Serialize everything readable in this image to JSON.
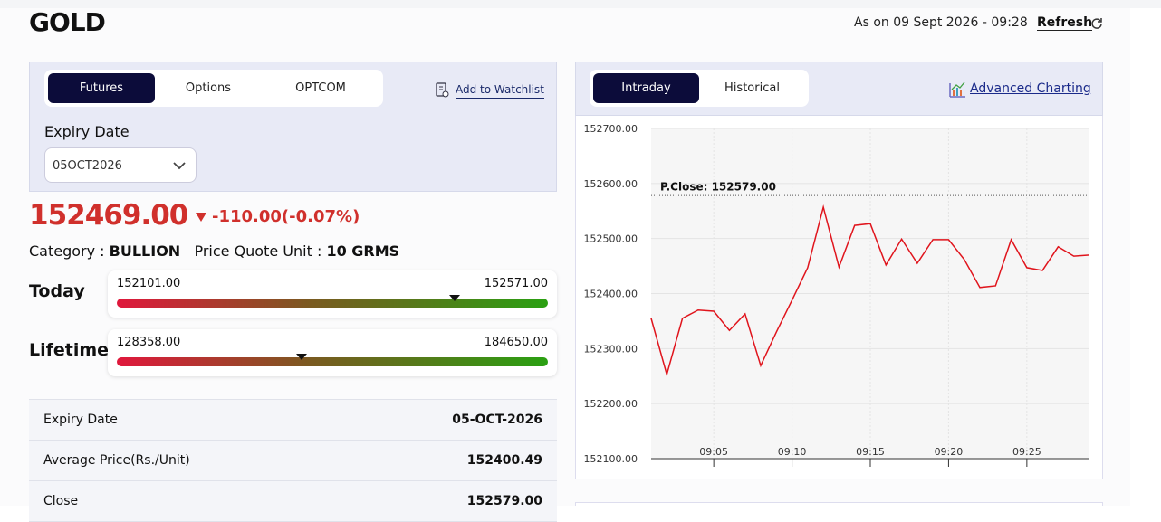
{
  "header": {
    "title": "GOLD",
    "as_on": "As on 09 Sept 2026 - 09:28",
    "refresh": "Refresh"
  },
  "left_tabs": {
    "items": [
      "Futures",
      "Options",
      "OPTCOM"
    ],
    "active": 0
  },
  "watchlist": "Add to Watchlist",
  "expiry": {
    "label": "Expiry Date",
    "selected": "05OCT2026"
  },
  "price": "152469.00",
  "change": "-110.00(-0.07%)",
  "category": {
    "label": "Category :",
    "value": "BULLION"
  },
  "quote_unit": {
    "label": "Price Quote Unit :",
    "value": "10 GRMS"
  },
  "ranges": [
    {
      "label": "Today",
      "low": "152101.00",
      "high": "152571.00"
    },
    {
      "label": "Lifetime",
      "low": "128358.00",
      "high": "184650.00"
    }
  ],
  "table": {
    "rows": [
      [
        "Expiry Date",
        "05-OCT-2026"
      ],
      [
        "Average Price(Rs./Unit)",
        "152400.49"
      ],
      [
        "Close",
        "152579.00"
      ]
    ]
  },
  "right_tabs": {
    "items": [
      "Intraday",
      "Historical"
    ],
    "active": 0
  },
  "advanced": "Advanced Charting",
  "chart_data": {
    "type": "line",
    "x": [
      "09:01",
      "09:02",
      "09:03",
      "09:04",
      "09:05",
      "09:06",
      "09:07",
      "09:08",
      "09:09",
      "09:10",
      "09:11",
      "09:12",
      "09:13",
      "09:14",
      "09:15",
      "09:16",
      "09:17",
      "09:18",
      "09:19",
      "09:20",
      "09:21",
      "09:22",
      "09:23",
      "09:24",
      "09:25",
      "09:26",
      "09:27",
      "09:28",
      "09:29"
    ],
    "series": [
      {
        "color": "#e0141c",
        "values": [
          152355,
          152253,
          152355,
          152370,
          152368,
          152333,
          152363,
          152269,
          152330,
          152388,
          152447,
          152557,
          152448,
          152524,
          152527,
          152452,
          152499,
          152455,
          152498,
          152498,
          152462,
          152411,
          152414,
          152498,
          152447,
          152442,
          152485,
          152468,
          152470
        ]
      }
    ],
    "xlim": [
      "09:01",
      "09:29"
    ],
    "xticks": [
      "09:05",
      "09:10",
      "09:15",
      "09:20",
      "09:25"
    ],
    "ylim": [
      152100,
      152700
    ],
    "yticks": [
      {
        "value": 152100,
        "label": "152100.00"
      },
      {
        "value": 152200,
        "label": "152200.00"
      },
      {
        "value": 152300,
        "label": "152300.00"
      },
      {
        "value": 152400,
        "label": "152400.00"
      },
      {
        "value": 152500,
        "label": "152500.00"
      },
      {
        "value": 152600,
        "label": "152600.00"
      },
      {
        "value": 152700,
        "label": "152700.00"
      }
    ],
    "reference_line": {
      "label": "P.Close: 152579.00",
      "value": 152579
    },
    "grid": true
  }
}
